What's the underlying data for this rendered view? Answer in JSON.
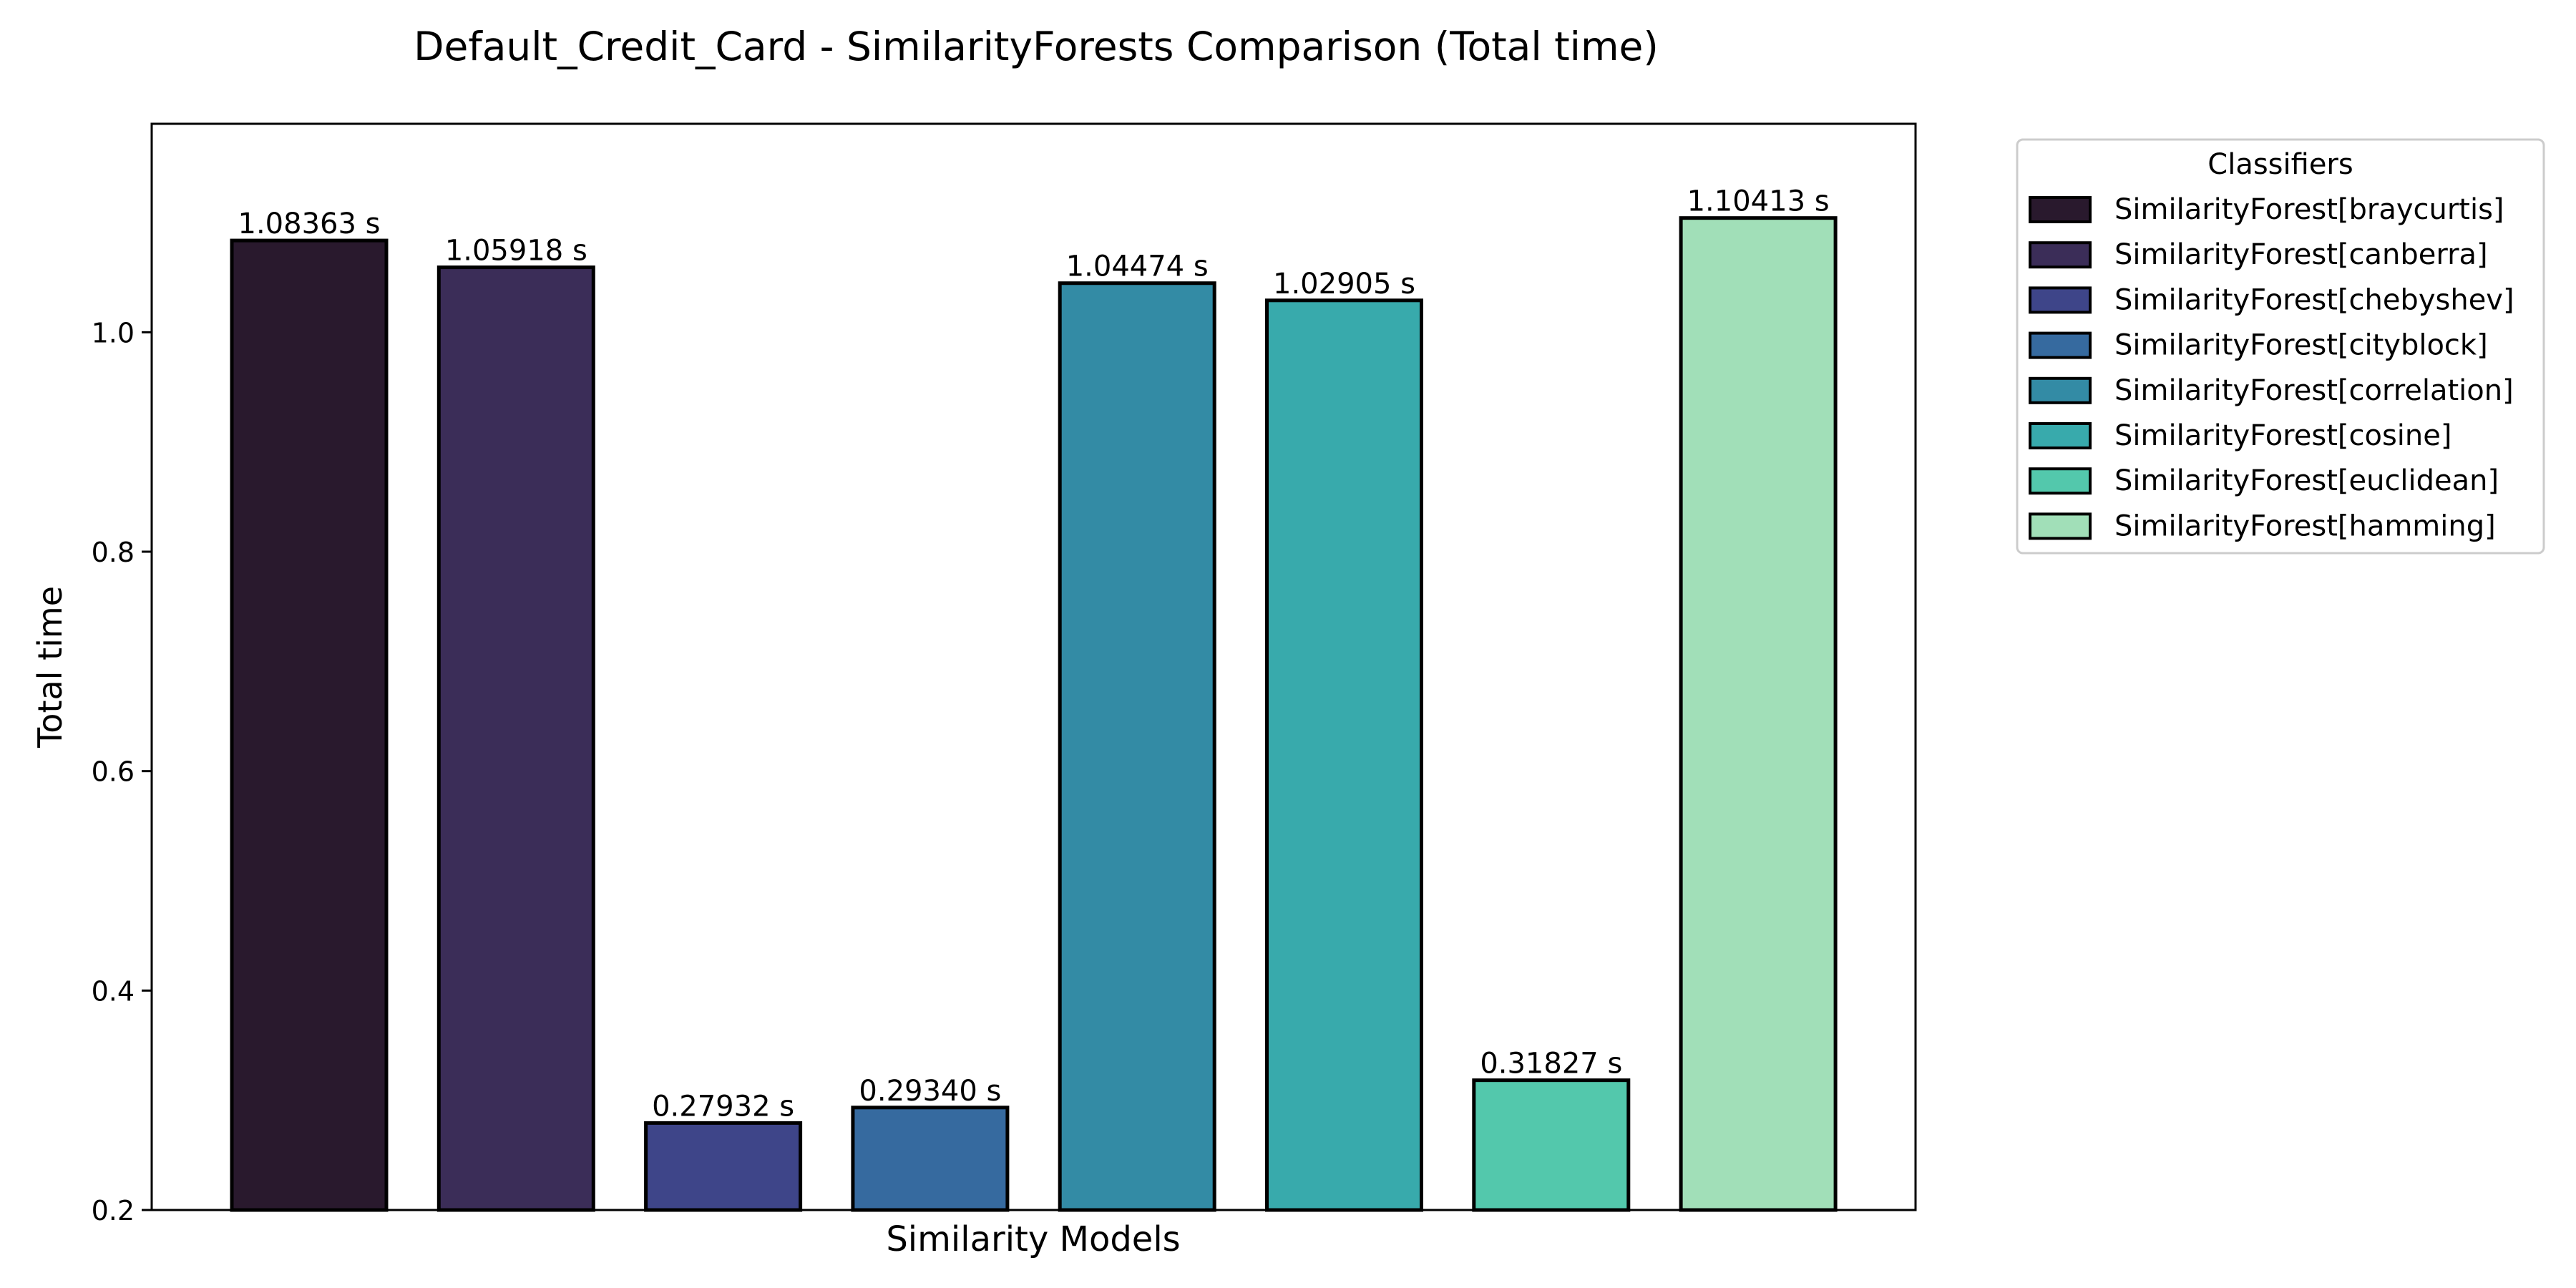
{
  "chart_data": {
    "type": "bar",
    "title": "Default_Credit_Card - SimilarityForests Comparison (Total time)",
    "xlabel": "Similarity Models",
    "ylabel": "Total time",
    "ylim": [
      0.2,
      1.19
    ],
    "yticks": [
      0.2,
      0.4,
      0.6,
      0.8,
      1.0
    ],
    "ytick_labels": [
      "0.2",
      "0.4",
      "0.6",
      "0.8",
      "1.0"
    ],
    "grid": false,
    "legend": {
      "title": "Classifiers",
      "placement": "outside-top-right"
    },
    "value_suffix": " s",
    "categories": [
      "SimilarityForest[braycurtis]",
      "SimilarityForest[canberra]",
      "SimilarityForest[chebyshev]",
      "SimilarityForest[cityblock]",
      "SimilarityForest[correlation]",
      "SimilarityForest[cosine]",
      "SimilarityForest[euclidean]",
      "SimilarityForest[hamming]"
    ],
    "values": [
      1.08363,
      1.05918,
      0.27932,
      0.2934,
      1.04474,
      1.02905,
      0.31827,
      1.10413
    ],
    "value_labels": [
      "1.08363 s",
      "1.05918 s",
      "0.27932 s",
      "0.29340 s",
      "1.04474 s",
      "1.02905 s",
      "0.31827 s",
      "1.10413 s"
    ],
    "colors": [
      "#29192d",
      "#3b2d58",
      "#3e4589",
      "#366a9f",
      "#338ba5",
      "#38aaac",
      "#53c8ac",
      "#a1dfb8"
    ],
    "edge_color": "#000000"
  }
}
